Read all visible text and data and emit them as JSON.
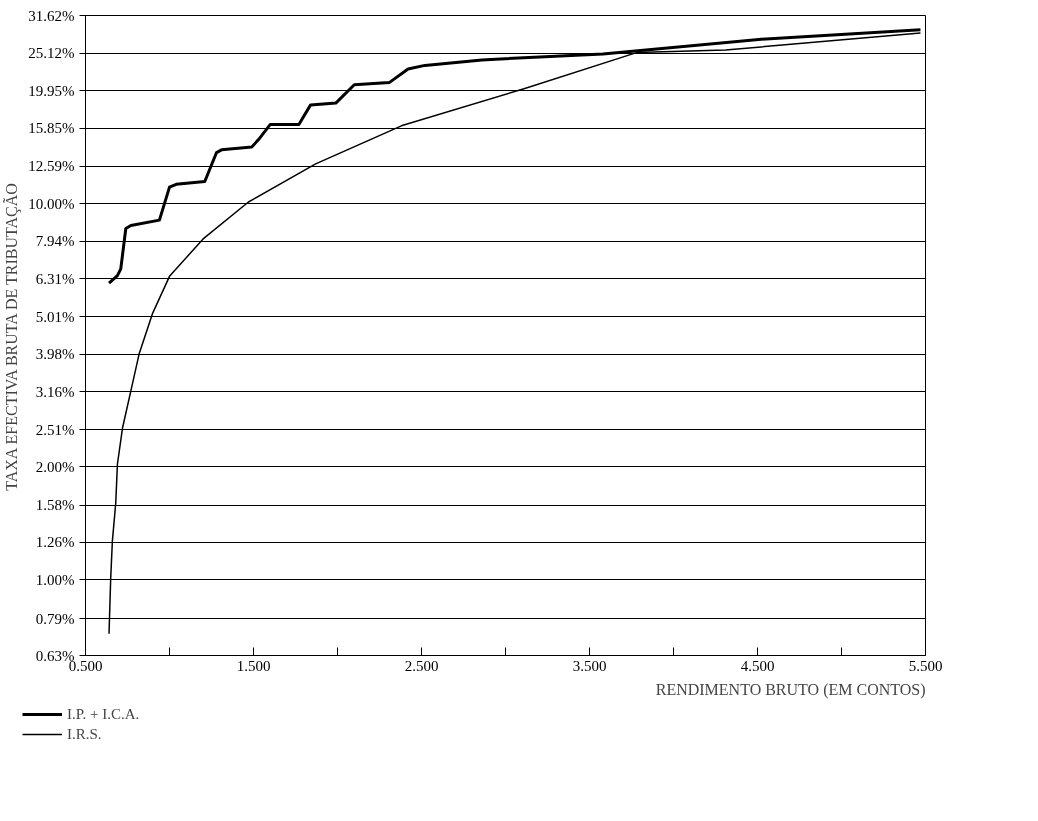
{
  "chart_data": {
    "type": "line",
    "xlabel": "RENDIMENTO BRUTO (EM CONTOS)",
    "ylabel": "TAXA EFECTIVA BRUTA DE TRIBUTAÇÃO",
    "log": "y",
    "grid": "y",
    "legend": "bottom left",
    "marker": "none",
    "line_style": "solid",
    "xlim": [
      0.5,
      5.5
    ],
    "xticks": [
      {
        "value": 0.5,
        "label": "0.500"
      },
      {
        "value": 1.0,
        "label": null
      },
      {
        "value": 1.5,
        "label": "1.500"
      },
      {
        "value": 2.0,
        "label": null
      },
      {
        "value": 2.5,
        "label": "2.500"
      },
      {
        "value": 3.0,
        "label": null
      },
      {
        "value": 3.5,
        "label": "3.500"
      },
      {
        "value": 4.0,
        "label": null
      },
      {
        "value": 4.5,
        "label": "4.500"
      },
      {
        "value": 5.0,
        "label": null
      },
      {
        "value": 5.5,
        "label": "5.500"
      }
    ],
    "ylim": [
      0.63,
      31.62
    ],
    "yticks": [
      {
        "value": 0.63,
        "label": "0.63%"
      },
      {
        "value": 0.79,
        "label": "0.79%"
      },
      {
        "value": 1.0,
        "label": "1.00%"
      },
      {
        "value": 1.26,
        "label": "1.26%"
      },
      {
        "value": 1.58,
        "label": "1.58%"
      },
      {
        "value": 2.0,
        "label": "2.00%"
      },
      {
        "value": 2.51,
        "label": "2.51%"
      },
      {
        "value": 3.16,
        "label": "3.16%"
      },
      {
        "value": 3.98,
        "label": "3.98%"
      },
      {
        "value": 5.01,
        "label": "5.01%"
      },
      {
        "value": 6.31,
        "label": "6.31%"
      },
      {
        "value": 7.94,
        "label": "7.94%"
      },
      {
        "value": 10.0,
        "label": "10.00%"
      },
      {
        "value": 12.59,
        "label": "12.59%"
      },
      {
        "value": 15.85,
        "label": "15.85%"
      },
      {
        "value": 19.95,
        "label": "19.95%"
      },
      {
        "value": 25.12,
        "label": "25.12%"
      },
      {
        "value": 31.62,
        "label": "31.62%"
      }
    ],
    "series": [
      {
        "name": "I.P. + I.C.A.",
        "color": "#000000",
        "x": [
          0.64,
          0.69,
          0.71,
          0.74,
          0.77,
          0.94,
          1.0,
          1.04,
          1.21,
          1.28,
          1.31,
          1.49,
          1.53,
          1.6,
          1.77,
          1.84,
          1.99,
          2.1,
          2.31,
          2.42,
          2.52,
          2.86,
          3.58,
          4.55,
          5.47
        ],
        "values": [
          6.15,
          6.44,
          6.71,
          8.59,
          8.75,
          9.04,
          11.06,
          11.26,
          11.45,
          13.67,
          13.9,
          14.15,
          14.8,
          16.24,
          16.24,
          18.3,
          18.5,
          20.7,
          21.0,
          22.8,
          23.3,
          24.1,
          25.0,
          27.4,
          29.0
        ]
      },
      {
        "name": "I.R.S.",
        "color": "#000000",
        "x": [
          0.64,
          0.65,
          0.66,
          0.68,
          0.69,
          0.72,
          0.77,
          0.82,
          0.9,
          1.0,
          1.2,
          1.47,
          1.87,
          2.38,
          3.11,
          3.78,
          4.31,
          5.47
        ],
        "values": [
          0.72,
          1.01,
          1.27,
          1.6,
          2.03,
          2.53,
          3.18,
          4.0,
          5.12,
          6.41,
          8.06,
          10.1,
          12.76,
          16.1,
          20.2,
          25.2,
          25.6,
          28.4
        ]
      }
    ]
  }
}
